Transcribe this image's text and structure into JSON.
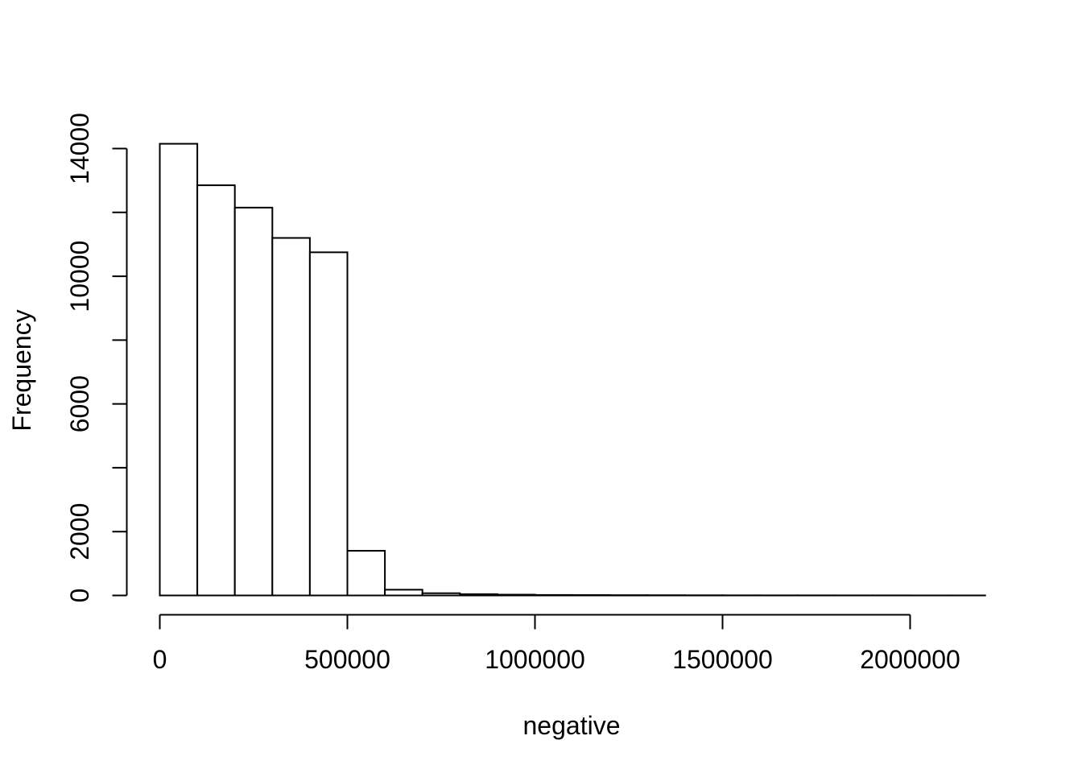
{
  "figure": {
    "background": "#ffffff"
  },
  "chart_data": {
    "type": "bar",
    "subtype": "histogram",
    "title": "",
    "xlabel": "negative",
    "ylabel": "Frequency",
    "grid": false,
    "legend": null,
    "bar_fill": "#ffffff",
    "bar_stroke": "#000000",
    "axis_color": "#000000",
    "text_color": "#000000",
    "xlim": [
      0,
      2200000
    ],
    "ylim": [
      0,
      14000
    ],
    "bin_start": 0,
    "bin_width": 100000,
    "counts": [
      14150,
      12850,
      12150,
      11200,
      10750,
      1400,
      180,
      70,
      40,
      25,
      15,
      12,
      9,
      7,
      5,
      4,
      3,
      3,
      2,
      2,
      1,
      1
    ],
    "x_tick_labels": [
      {
        "value": 0,
        "label": "0"
      },
      {
        "value": 500000,
        "label": "500000"
      },
      {
        "value": 1000000,
        "label": "1000000"
      },
      {
        "value": 1500000,
        "label": "1500000"
      },
      {
        "value": 2000000,
        "label": "2000000"
      }
    ],
    "y_tick_marks": [
      0,
      2000,
      4000,
      6000,
      8000,
      10000,
      12000,
      14000
    ],
    "y_tick_labels": [
      {
        "value": 0,
        "label": "0"
      },
      {
        "value": 2000,
        "label": "2000"
      },
      {
        "value": 6000,
        "label": "6000"
      },
      {
        "value": 10000,
        "label": "10000"
      },
      {
        "value": 14000,
        "label": "14000"
      }
    ]
  }
}
